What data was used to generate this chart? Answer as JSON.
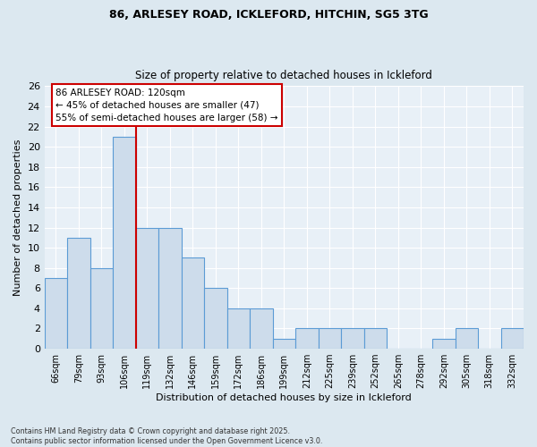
{
  "title1": "86, ARLESEY ROAD, ICKLEFORD, HITCHIN, SG5 3TG",
  "title2": "Size of property relative to detached houses in Ickleford",
  "xlabel": "Distribution of detached houses by size in Ickleford",
  "ylabel": "Number of detached properties",
  "bar_labels": [
    "66sqm",
    "79sqm",
    "93sqm",
    "106sqm",
    "119sqm",
    "132sqm",
    "146sqm",
    "159sqm",
    "172sqm",
    "186sqm",
    "199sqm",
    "212sqm",
    "225sqm",
    "239sqm",
    "252sqm",
    "265sqm",
    "278sqm",
    "292sqm",
    "305sqm",
    "318sqm",
    "332sqm"
  ],
  "bar_values": [
    7,
    11,
    8,
    21,
    12,
    12,
    9,
    6,
    4,
    4,
    1,
    2,
    2,
    2,
    2,
    0,
    0,
    1,
    2,
    0,
    2
  ],
  "bar_color": "#cddceb",
  "bar_edge_color": "#5b9bd5",
  "vline_x_idx": 3.5,
  "vline_color": "#cc0000",
  "annotation_text": "86 ARLESEY ROAD: 120sqm\n← 45% of detached houses are smaller (47)\n55% of semi-detached houses are larger (58) →",
  "annotation_box_color": "#ffffff",
  "annotation_box_edge": "#cc0000",
  "ylim": [
    0,
    26
  ],
  "yticks": [
    0,
    2,
    4,
    6,
    8,
    10,
    12,
    14,
    16,
    18,
    20,
    22,
    24,
    26
  ],
  "footer": "Contains HM Land Registry data © Crown copyright and database right 2025.\nContains public sector information licensed under the Open Government Licence v3.0.",
  "bg_color": "#dce8f0",
  "plot_bg_color": "#e8f0f7"
}
